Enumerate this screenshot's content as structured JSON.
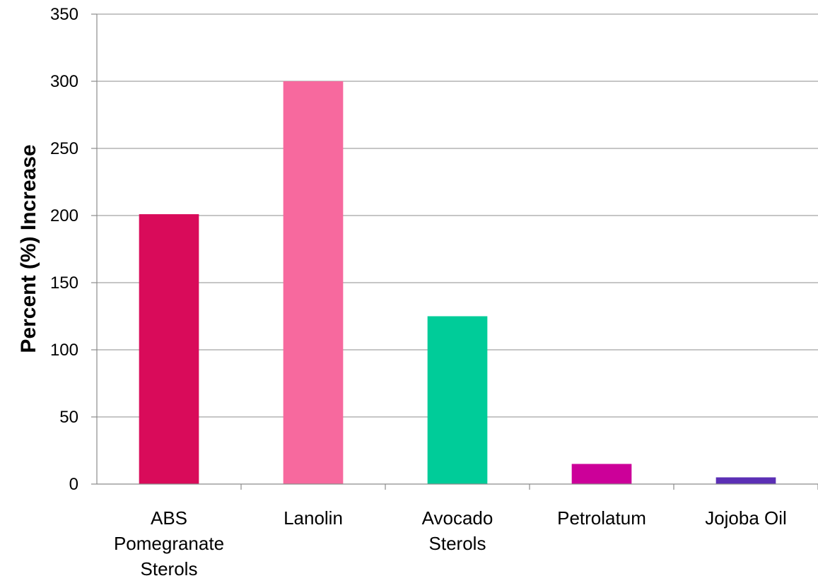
{
  "chart_data": {
    "type": "bar",
    "title": "",
    "xlabel": "",
    "ylabel": "Percent (%) Increase",
    "ylim": [
      0,
      350
    ],
    "yticks": [
      0,
      50,
      100,
      150,
      200,
      250,
      300,
      350
    ],
    "grid": true,
    "legend": "none",
    "categories": [
      [
        "ABS",
        "Pomegranate",
        "Sterols"
      ],
      [
        "Lanolin"
      ],
      [
        "Avocado",
        "Sterols"
      ],
      [
        "Petrolatum"
      ],
      [
        "Jojoba Oil"
      ]
    ],
    "values": [
      201,
      300,
      125,
      15,
      5
    ],
    "colors": [
      "#d90b5a",
      "#f7699e",
      "#00cc99",
      "#cc0099",
      "#5b2fb5"
    ]
  }
}
